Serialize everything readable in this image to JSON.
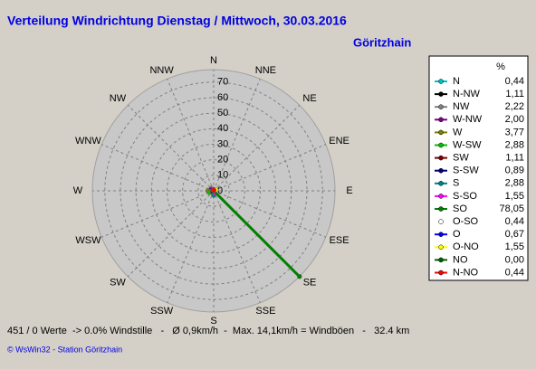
{
  "chart_data": {
    "type": "windrose",
    "title": "Verteilung Windrichtung  Dienstag / Mittwoch, 30.03.2016",
    "subtitle": "Göritzhain",
    "angular_labels": [
      "N",
      "NNE",
      "NE",
      "ENE",
      "E",
      "ESE",
      "SE",
      "SSE",
      "S",
      "SSW",
      "SW",
      "WSW",
      "W",
      "WNW",
      "NW",
      "NNW"
    ],
    "rlim": [
      0,
      78.05
    ],
    "rticks": [
      0,
      10,
      20,
      30,
      40,
      50,
      60,
      70
    ],
    "legend_title": "%",
    "categories": [
      "N",
      "N-NW",
      "NW",
      "W-NW",
      "W",
      "W-SW",
      "SW",
      "S-SW",
      "S",
      "S-SO",
      "SO",
      "O-SO",
      "O",
      "O-NO",
      "NO",
      "N-NO"
    ],
    "values": [
      0.44,
      1.11,
      2.22,
      2.0,
      3.77,
      2.88,
      1.11,
      0.89,
      2.88,
      1.55,
      78.05,
      0.44,
      0.67,
      1.55,
      0.0,
      0.44
    ],
    "value_labels": [
      "0,44",
      "1,11",
      "2,22",
      "2,00",
      "3,77",
      "2,88",
      "1,11",
      "0,89",
      "2,88",
      "1,55",
      "78,05",
      "0,44",
      "0,67",
      "1,55",
      "0,00",
      "0,44"
    ],
    "colors": [
      "#00c0c0",
      "#000000",
      "#808080",
      "#800080",
      "#808000",
      "#00c000",
      "#800000",
      "#000080",
      "#008080",
      "#ff00ff",
      "#008000",
      "#ffffff",
      "#0000ff",
      "#ffff00",
      "#006000",
      "#ff0000"
    ],
    "footer": "451 / 0 Werte  -> 0.0% Windstille   -   Ø 0,9km/h  -  Max. 14,1km/h = Windböen   -   32.4 km",
    "credit": "© WsWin32  -  Station Göritzhain"
  }
}
